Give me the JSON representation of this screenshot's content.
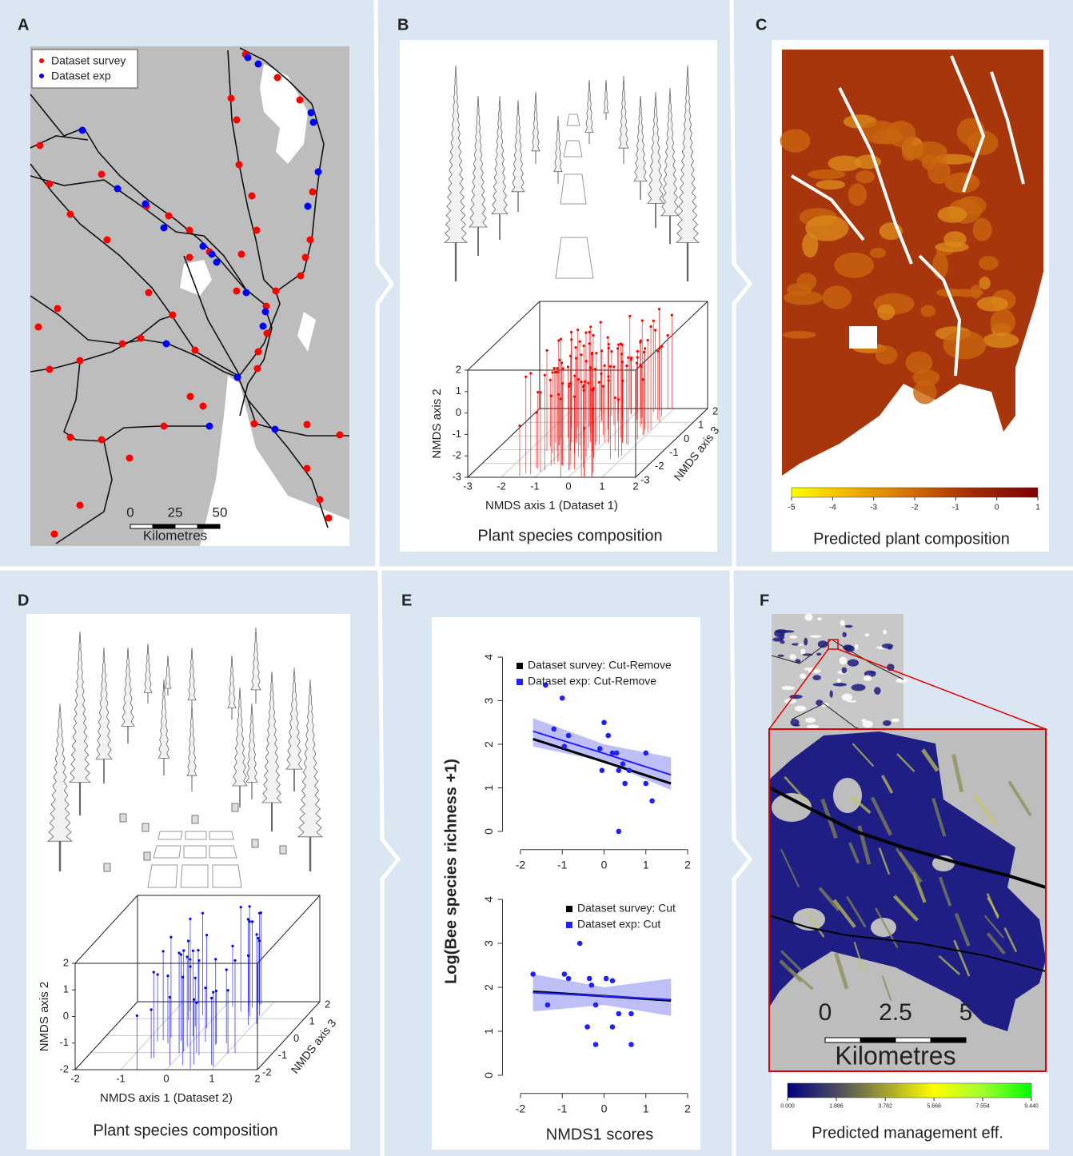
{
  "panels": [
    {
      "label": "A",
      "legend": [
        {
          "name": "Dataset survey",
          "color": "#ff0000"
        },
        {
          "name": "Dataset exp",
          "color": "#0000ff"
        }
      ],
      "scale_ticks": [
        0,
        25,
        50
      ],
      "scale_unit": "Kilometres"
    },
    {
      "label": "B",
      "caption": "Plant species composition",
      "axis1": "NMDS axis 1 (Dataset 1)",
      "axis2": "NMDS axis 2",
      "axis3": "NMDS axis 3",
      "axis1_ticks": [
        -3,
        -2,
        -1,
        0,
        1,
        2
      ],
      "axis2_ticks": [
        -3,
        -2,
        -1,
        0,
        1,
        2
      ],
      "axis3_ticks": [
        -3,
        -2,
        -1,
        0,
        1,
        2
      ],
      "color": "#ff0000"
    },
    {
      "label": "C",
      "colorbar_ticks": [
        -5,
        -4,
        -3,
        -2,
        -1,
        0,
        1
      ],
      "caption": "Predicted plant composition"
    },
    {
      "label": "D",
      "caption": "Plant species composition",
      "axis1": "NMDS axis 1 (Dataset 2)",
      "axis2": "NMDS axis 2",
      "axis3": "NMDS axis 3",
      "axis1_ticks": [
        -2,
        -1,
        0,
        1,
        2
      ],
      "axis2_ticks": [
        -2,
        -1,
        0,
        1,
        2
      ],
      "axis3_ticks": [
        -2,
        -1,
        0,
        1,
        2
      ],
      "color": "#0000ff"
    },
    {
      "label": "E"
    },
    {
      "label": "F",
      "scale_ticks": [
        0,
        2.5,
        5
      ],
      "scale_unit": "Kilometres",
      "colorbar_ticks": [
        {
          "value": 0,
          "label": "0.000"
        },
        1.886,
        3.782,
        5.668,
        7.554,
        {
          "value": 9.44,
          "label": "9.440"
        }
      ],
      "caption": "Predicted management eff."
    }
  ],
  "chart_data": [
    {
      "type": "scatter",
      "ylabel": "Log(Bee species richness +1)",
      "xlim": [
        -2.2,
        2.2
      ],
      "ylim": [
        -0.16,
        4.16
      ],
      "xticks": [
        -2,
        -1,
        0,
        1,
        2
      ],
      "yticks": [
        0,
        1,
        2,
        3,
        4
      ],
      "series": [
        {
          "name": "Dataset survey: Cut-Remove",
          "color": "#000000",
          "fit_x": [
            -1.7,
            0,
            1.6
          ],
          "fit": [
            2.12,
            1.6,
            1.1
          ]
        },
        {
          "name": "Dataset exp: Cut-Remove",
          "color": "#2020ff",
          "x": [
            -1.4,
            -1.0,
            -1.2,
            -0.85,
            -0.95,
            0,
            0.1,
            -0.1,
            0.2,
            0.3,
            0.45,
            -0.05,
            0.35,
            0.6,
            0.5,
            1.0,
            1.0,
            1.15,
            0.35
          ],
          "values": [
            3.36,
            3.06,
            2.35,
            2.2,
            1.95,
            2.5,
            2.2,
            1.9,
            1.8,
            1.8,
            1.55,
            1.4,
            1.4,
            1.4,
            1.1,
            1.1,
            1.8,
            0.7,
            0
          ],
          "fit_x": [
            -1.7,
            0,
            1.6
          ],
          "fit": [
            2.3,
            1.79,
            1.3
          ],
          "band_lower": [
            1.95,
            1.6,
            0.95
          ],
          "band_upper": [
            2.6,
            2.0,
            1.7
          ]
        }
      ]
    },
    {
      "type": "scatter",
      "xlabel": "NMDS1 scores",
      "xlim": [
        -2.2,
        2.2
      ],
      "ylim": [
        -0.16,
        4.16
      ],
      "xticks": [
        -2,
        -1,
        0,
        1,
        2
      ],
      "yticks": [
        0,
        1,
        2,
        3,
        4
      ],
      "series": [
        {
          "name": "Dataset survey: Cut",
          "color": "#000000",
          "fit_x": [
            -1.7,
            0,
            1.6
          ],
          "fit": [
            1.9,
            1.8,
            1.7
          ]
        },
        {
          "name": "Dataset exp: Cut",
          "color": "#2020ff",
          "x": [
            -1.7,
            -1.35,
            -0.95,
            -0.58,
            -0.85,
            -0.35,
            0.05,
            0.2,
            -0.3,
            -0.2,
            -0.4,
            0.2,
            0.35,
            0.65,
            -0.2,
            0.65
          ],
          "values": [
            2.3,
            1.6,
            2.3,
            3.0,
            2.2,
            2.2,
            2.2,
            2.15,
            2.05,
            1.6,
            1.1,
            1.1,
            1.4,
            1.4,
            0.7,
            0.7
          ],
          "fit_x": [
            -1.7,
            0,
            1.6
          ],
          "fit": [
            1.88,
            1.8,
            1.72
          ],
          "band_lower": [
            1.45,
            1.6,
            1.35
          ],
          "band_upper": [
            2.3,
            2.0,
            2.2
          ]
        }
      ]
    }
  ]
}
